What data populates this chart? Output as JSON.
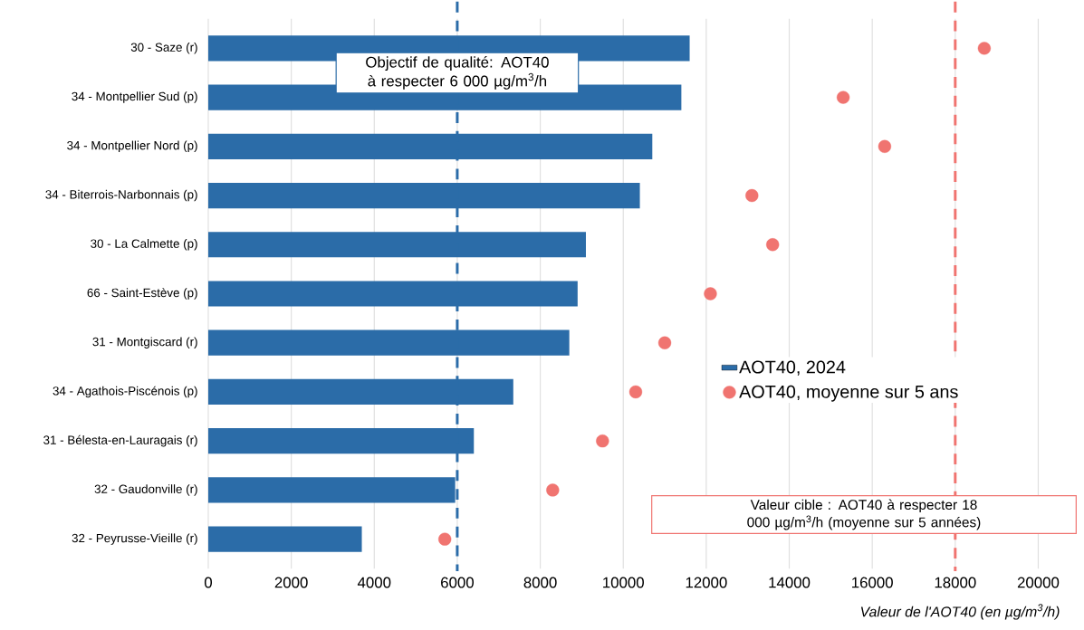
{
  "chart_data": {
    "type": "bar",
    "orientation": "horizontal",
    "xlabel": "Valeur de l'AOT40 (en µg/m$^{3}$/h)",
    "categories": [
      "30 - Saze (r)",
      "34 - Montpellier Sud (p)",
      "34 - Montpellier Nord (p)",
      "34 - Biterrois-Narbonnais (p)",
      "30 - La Calmette (p)",
      "66 - Saint-Estève (p)",
      "31 - Montgiscard (r)",
      "34 - Agathois-Piscénois (p)",
      "31 - Bélesta-en-Lauragais (r)",
      "32 - Gaudonville (r)",
      "32 - Peyrusse-Vieille (r)"
    ],
    "series": [
      {
        "name": "AOT40, 2024",
        "color": "#2b6ca8",
        "values": [
          11600,
          11400,
          10700,
          10400,
          9100,
          8900,
          8700,
          7350,
          6400,
          5950,
          3700
        ]
      },
      {
        "name": "AOT40, moyenne sur 5 ans",
        "type": "scatter",
        "color": "#f07470",
        "values": [
          18700,
          15300,
          16300,
          13100,
          13600,
          12100,
          11000,
          10300,
          9500,
          8300,
          5700
        ]
      }
    ],
    "xlim": [
      0,
      20000
    ],
    "xticks": [
      0,
      2000,
      4000,
      6000,
      8000,
      10000,
      12000,
      14000,
      16000,
      18000,
      20000
    ],
    "grid": "x",
    "legend": "right",
    "ref_lines": [
      {
        "axis": "x",
        "value": 6000,
        "label": "Objectif de qualité: AOT40 à respecter 6 000 µg/m$^{3}$/h",
        "color": "#2b6ca8",
        "line_style": "dashed"
      },
      {
        "axis": "x",
        "value": 18000,
        "label": "Valeur cible : AOT40 à respecter 18 000 µg/m$^{3}$/h (moyenne sur 5 années)",
        "color": "#f07470",
        "line_style": "dashed"
      }
    ]
  }
}
